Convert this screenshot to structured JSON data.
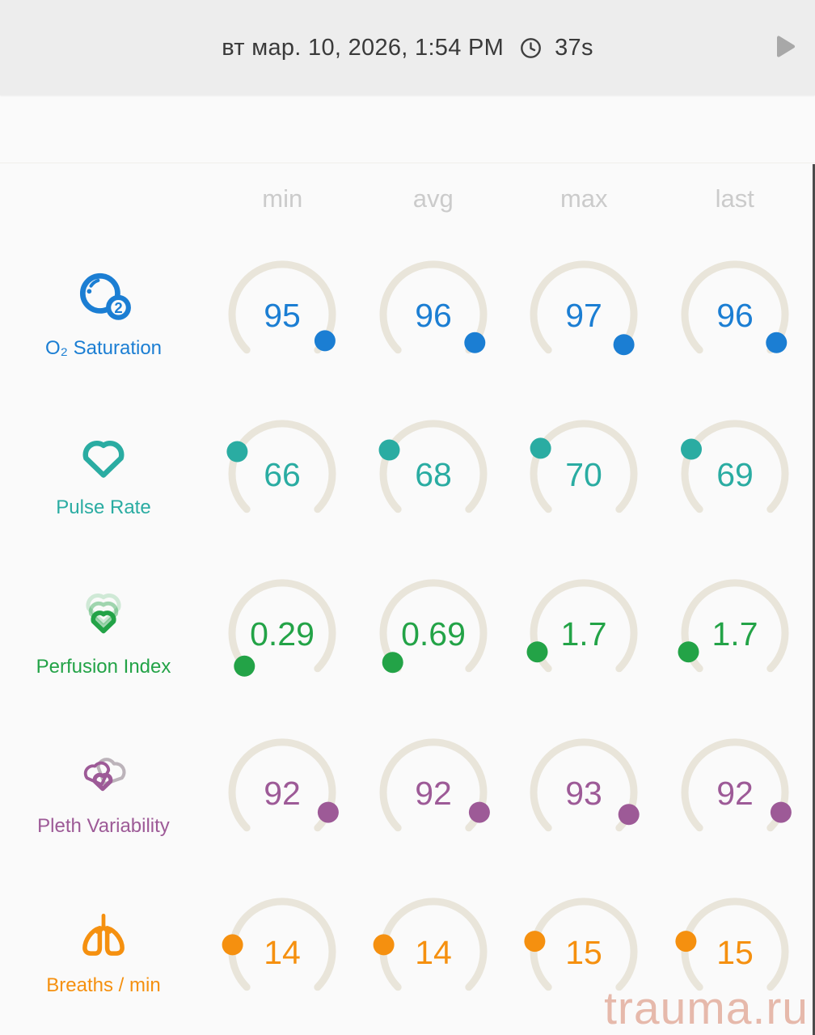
{
  "header": {
    "date": "вт мар. 10, 2026, 1:54 PM",
    "duration": "37s",
    "clock_icon": "clock",
    "play_icon": "play"
  },
  "columns": [
    "min",
    "avg",
    "max",
    "last"
  ],
  "watermark": "trauma.ru",
  "colors": {
    "o2": "#1b7ed3",
    "pulse": "#2aaca2",
    "perfusion": "#23a347",
    "pleth": "#9d5a97",
    "breaths": "#f5900f",
    "gauge_arc": "#e9e5da",
    "header_bg": "#ededed",
    "body_bg": "#fafafa",
    "column_header_text": "#cbcbcb",
    "watermark_text": "#e6b9ab"
  },
  "rows": [
    {
      "label": "O₂ Saturation",
      "icon": "o2-saturation",
      "color": "#1b7ed3",
      "values": [
        "95",
        "96",
        "97",
        "96"
      ],
      "dot_angles": [
        121.5,
        124.2,
        126.9,
        124.2
      ]
    },
    {
      "label": "Pulse Rate",
      "icon": "pulse-rate",
      "color": "#2aaca2",
      "values": [
        "66",
        "68",
        "70",
        "69"
      ],
      "dot_angles": [
        296.3,
        298.4,
        300.6,
        299.5
      ]
    },
    {
      "label": "Perfusion Index",
      "icon": "perfusion-index",
      "color": "#23a347",
      "values": [
        "0.29",
        "0.69",
        "1.7",
        "1.7"
      ],
      "dot_angles": [
        228.9,
        234.3,
        248.0,
        248.0
      ]
    },
    {
      "label": "Pleth Variability",
      "icon": "pleth-variability",
      "color": "#9d5a97",
      "values": [
        "92",
        "92",
        "93",
        "92"
      ],
      "dot_angles": [
        113.4,
        113.4,
        116.1,
        113.4
      ]
    },
    {
      "label": "Breaths / min",
      "icon": "breaths-per-min",
      "color": "#f5900f",
      "values": [
        "14",
        "14",
        "15",
        "15"
      ],
      "dot_angles": [
        278,
        278,
        282,
        282
      ]
    }
  ],
  "chart_data": {
    "type": "table",
    "title": "Pulse oximeter session summary gauges",
    "columns": [
      "min",
      "avg",
      "max",
      "last"
    ],
    "rows": [
      {
        "metric": "O₂ Saturation",
        "values": [
          95,
          96,
          97,
          96
        ]
      },
      {
        "metric": "Pulse Rate",
        "values": [
          66,
          68,
          70,
          69
        ]
      },
      {
        "metric": "Perfusion Index",
        "values": [
          0.29,
          0.69,
          1.7,
          1.7
        ]
      },
      {
        "metric": "Pleth Variability",
        "values": [
          92,
          92,
          93,
          92
        ]
      },
      {
        "metric": "Breaths / min",
        "values": [
          14,
          14,
          15,
          15
        ]
      }
    ]
  }
}
